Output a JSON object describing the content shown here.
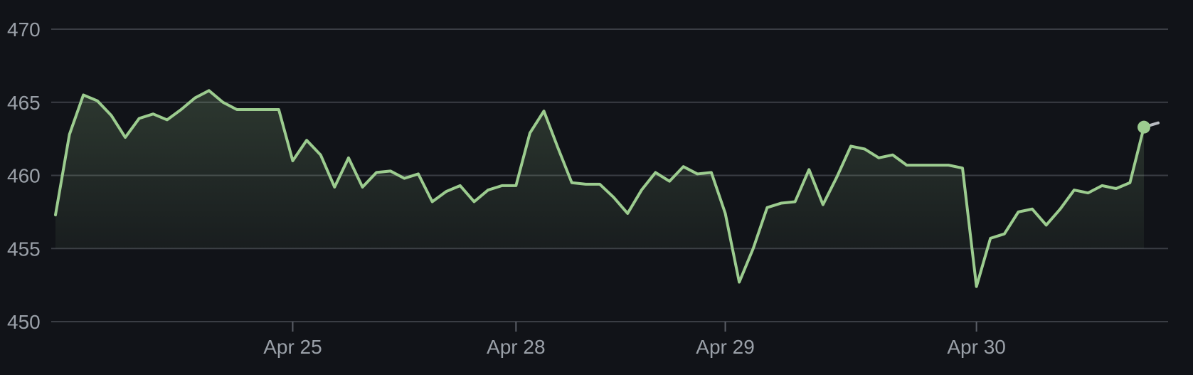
{
  "chart_data": {
    "type": "area",
    "title": "",
    "xlabel": "",
    "ylabel": "",
    "ylim": [
      450,
      470
    ],
    "y_ticks": [
      450,
      455,
      460,
      465,
      470
    ],
    "x_ticks": [
      {
        "label": "Apr 25",
        "index": 17
      },
      {
        "label": "Apr 28",
        "index": 33
      },
      {
        "label": "Apr 29",
        "index": 48
      },
      {
        "label": "Apr 30",
        "index": 66
      }
    ],
    "grid": true,
    "legend": "none",
    "line_color": "#9ccc8f",
    "last_point_marker": true,
    "series": [
      {
        "values": [
          457.3,
          462.8,
          465.5,
          465.1,
          464.1,
          462.6,
          463.9,
          464.2,
          463.8,
          464.5,
          465.3,
          465.8,
          465.0,
          464.5,
          464.5,
          464.5,
          464.5,
          461.0,
          462.4,
          461.4,
          459.2,
          461.2,
          459.2,
          460.2,
          460.3,
          459.8,
          460.1,
          458.2,
          458.9,
          459.3,
          458.2,
          459.0,
          459.3,
          459.3,
          462.9,
          464.4,
          461.9,
          459.5,
          459.4,
          459.4,
          458.5,
          457.4,
          459.0,
          460.2,
          459.6,
          460.6,
          460.1,
          460.2,
          457.4,
          452.7,
          455.0,
          457.8,
          458.1,
          458.2,
          460.4,
          458.0,
          459.9,
          462.0,
          461.8,
          461.2,
          461.4,
          460.7,
          460.7,
          460.7,
          460.7,
          460.5,
          452.4,
          455.7,
          456.0,
          457.5,
          457.7,
          456.6,
          457.7,
          459.0,
          458.8,
          459.3,
          459.1,
          459.5,
          463.3
        ]
      }
    ]
  }
}
